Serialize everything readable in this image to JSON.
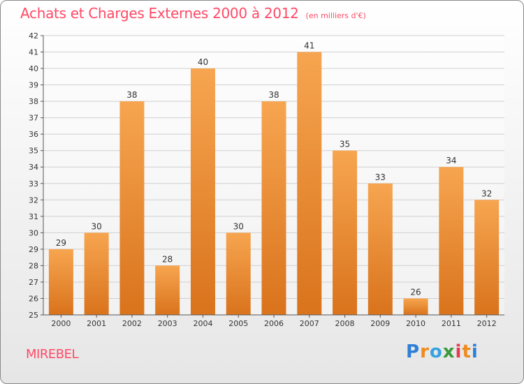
{
  "title": "Achats et Charges Externes 2000 à 2012",
  "subtitle": "(en milliers d'€)",
  "location": "MIREBEL",
  "brand": {
    "text": "Proxiti",
    "letters": [
      "P",
      "r",
      "o",
      "x",
      "i",
      "t",
      "i"
    ],
    "colors": [
      "#2e7fd6",
      "#f08a1e",
      "#35a3e0",
      "#3a9a3a",
      "#e63a4e",
      "#f08a1e",
      "#2e7fd6"
    ]
  },
  "chart_data": {
    "type": "bar",
    "categories": [
      "2000",
      "2001",
      "2002",
      "2003",
      "2004",
      "2005",
      "2006",
      "2007",
      "2008",
      "2009",
      "2010",
      "2011",
      "2012"
    ],
    "values": [
      29,
      30,
      38,
      28,
      40,
      30,
      38,
      41,
      35,
      33,
      26,
      34,
      32
    ],
    "ylim": [
      25,
      42
    ],
    "yticks": [
      25,
      26,
      27,
      28,
      29,
      30,
      31,
      32,
      33,
      34,
      35,
      36,
      37,
      38,
      39,
      40,
      41,
      42
    ],
    "grid": true,
    "bar_color": "#f08a2a"
  }
}
